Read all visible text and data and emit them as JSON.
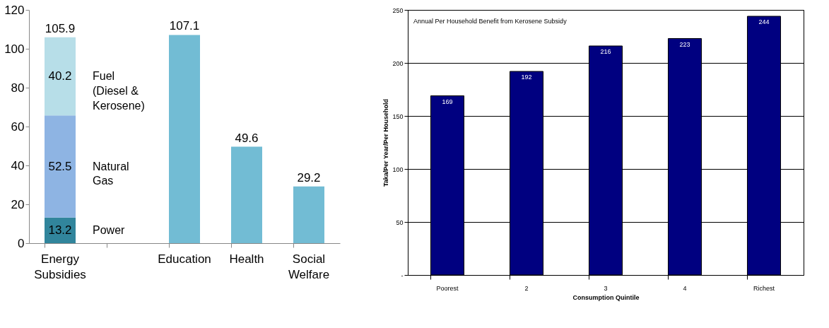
{
  "chart_data": [
    {
      "type": "bar",
      "stacked": true,
      "categories": [
        "Energy Subsidies",
        null,
        "Education",
        "Health",
        "Social Welfare"
      ],
      "series": [
        {
          "name": "Power",
          "color": "#31859c",
          "values": [
            13.2,
            null,
            null,
            null,
            null
          ]
        },
        {
          "name": "Natural Gas",
          "color": "#8eb4e3",
          "values": [
            52.5,
            null,
            null,
            null,
            null
          ]
        },
        {
          "name": "Fuel (Diesel & Kerosene)",
          "color": "#b7dee8",
          "values": [
            40.2,
            null,
            null,
            null,
            null
          ]
        },
        {
          "color": "#72bcd4",
          "values": [
            null,
            null,
            107.1,
            49.6,
            29.2
          ]
        }
      ],
      "totals": [
        "105.9",
        null,
        null,
        null,
        null
      ],
      "data_labels": true,
      "ylim": [
        0,
        120
      ],
      "yticks": [
        0,
        20,
        40,
        60,
        80,
        100,
        120
      ]
    },
    {
      "type": "bar",
      "title": "Annual Per Household Benefit from Kerosene Subsidy",
      "xlabel": "Consumption Quintile",
      "ylabel": "Taka/Per Year/Per Household",
      "categories": [
        "Poorest",
        "2",
        "3",
        "4",
        "Richest"
      ],
      "values": [
        169,
        192,
        216,
        223,
        244
      ],
      "color": "#000080",
      "data_labels": true,
      "ylim": [
        0,
        250
      ],
      "yticks": [
        {
          "value": 0,
          "label": "-"
        },
        50,
        100,
        150,
        200,
        250
      ],
      "grid": "y"
    }
  ]
}
